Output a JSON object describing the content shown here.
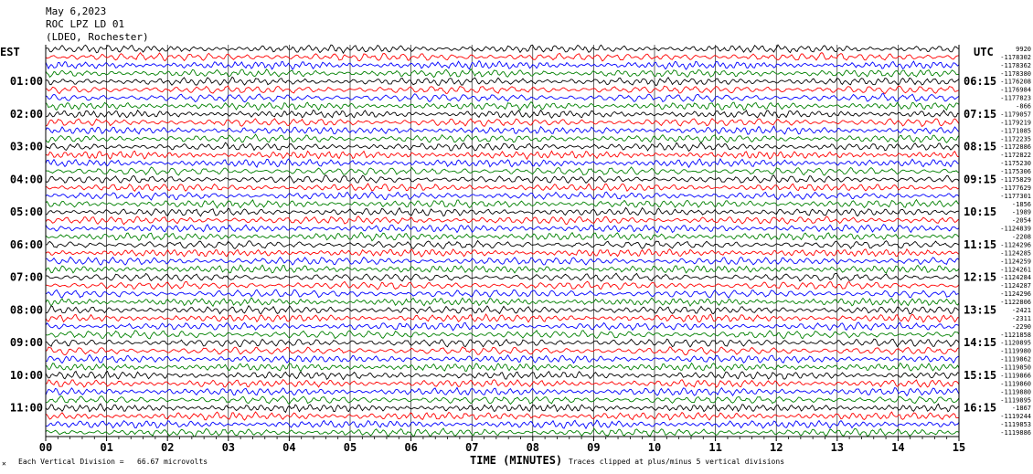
{
  "header": {
    "date": "May 6,2023",
    "station": "ROC LPZ LD 01",
    "network": "(LDEO, Rochester)"
  },
  "left_axis_label": "EST",
  "right_axis_label": "UTC",
  "footer": {
    "scale_note": "Each Vertical Division =   66.67 microvolts",
    "clip_note": "Traces clipped at plus/minus 5 vertical divisions",
    "corner_mark": "✕"
  },
  "chart_data": {
    "type": "line",
    "title": "",
    "xlabel": "TIME (MINUTES)",
    "ylabel": "",
    "x_ticks": [
      "00",
      "01",
      "02",
      "03",
      "04",
      "05",
      "06",
      "07",
      "08",
      "09",
      "10",
      "11",
      "12",
      "13",
      "14",
      "15"
    ],
    "xlim": [
      0,
      15
    ],
    "grid": true,
    "trace_colors": [
      "#000000",
      "#ff0000",
      "#0000ff",
      "#008000"
    ],
    "num_traces": 48,
    "traces_per_hour": 4,
    "est_hour_labels": [
      "01:00",
      "02:00",
      "03:00",
      "04:00",
      "05:00",
      "06:00",
      "07:00",
      "08:00",
      "09:00",
      "10:00",
      "11:00"
    ],
    "utc_hour_labels": [
      "06:15",
      "07:15",
      "08:15",
      "09:15",
      "10:15",
      "11:15",
      "12:15",
      "13:15",
      "14:15",
      "15:15",
      "16:15"
    ],
    "trace_offsets": [
      "9920",
      "-1178302",
      "-1178362",
      "-1178380",
      "-1176208",
      "-1176984",
      "-1177823",
      "-866",
      "-1179057",
      "-1179219",
      "-1171085",
      "-1172235",
      "-1172886",
      "-1172822",
      "-1175230",
      "-1175306",
      "-1175829",
      "-1177629",
      "-1177301",
      "-1856",
      "-1989",
      "-2054",
      "-1124839",
      "-2208",
      "-1124296",
      "-1124285",
      "-1124259",
      "-1124261",
      "-1124284",
      "-1124287",
      "-1124296",
      "-1122806",
      "-2421",
      "-2311",
      "-2290",
      "-1121858",
      "-1120895",
      "-1119980",
      "-1119862",
      "-1119850",
      "-1119866",
      "-1119860",
      "-1119880",
      "-1119895",
      "-1867",
      "-1119244",
      "-1119853",
      "-1119886"
    ]
  }
}
